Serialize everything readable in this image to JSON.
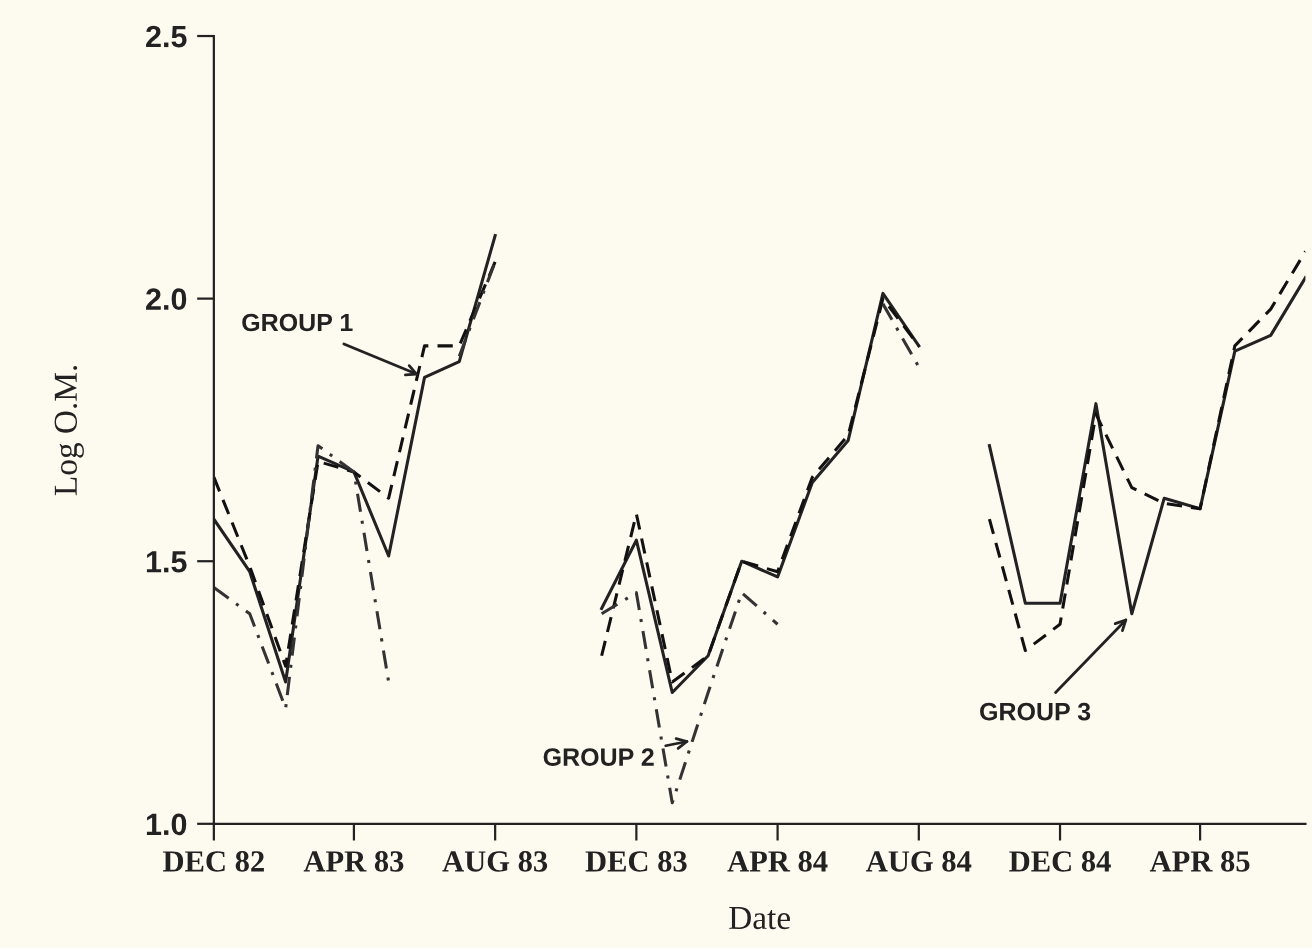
{
  "chart_data": {
    "type": "line",
    "xlabel": "Date",
    "ylabel": "Log O.M.",
    "x": [
      "1982-12",
      "1983-01",
      "1983-02",
      "1983-03",
      "1983-04",
      "1983-05",
      "1983-06",
      "1983-07",
      "1983-08",
      "1983-09",
      "1983-10",
      "1983-11",
      "1983-12",
      "1984-01",
      "1984-02",
      "1984-03",
      "1984-04",
      "1984-05",
      "1984-06",
      "1984-07",
      "1984-08",
      "1984-09",
      "1984-10",
      "1984-11",
      "1984-12",
      "1985-01",
      "1985-02",
      "1985-03",
      "1985-04",
      "1985-05",
      "1985-06",
      "1985-07"
    ],
    "series": [
      {
        "color": "#222222",
        "line_style": "solid",
        "values": [
          1.58,
          1.48,
          1.27,
          1.7,
          1.67,
          1.51,
          1.85,
          1.88,
          2.12,
          null,
          null,
          1.41,
          1.54,
          1.25,
          1.32,
          1.5,
          1.47,
          1.65,
          1.73,
          2.01,
          1.91,
          null,
          1.72,
          1.42,
          1.42,
          1.8,
          1.4,
          1.62,
          1.6,
          1.9,
          1.93,
          2.04
        ]
      },
      {
        "color": "#111111",
        "line_style": "dashed",
        "values": [
          1.66,
          1.49,
          1.3,
          1.69,
          1.67,
          1.62,
          1.91,
          1.91,
          2.07,
          null,
          null,
          1.32,
          1.59,
          1.27,
          1.32,
          1.5,
          1.48,
          1.66,
          1.74,
          2.0,
          1.91,
          null,
          1.58,
          1.33,
          1.38,
          1.78,
          1.64,
          1.61,
          1.6,
          1.91,
          1.98,
          2.09
        ]
      },
      {
        "color": "#333333",
        "line_style": "dashdot",
        "values": [
          1.45,
          1.4,
          1.22,
          1.72,
          1.67,
          1.27,
          null,
          1.89,
          2.07,
          null,
          null,
          1.4,
          1.44,
          1.04,
          1.25,
          1.44,
          1.38,
          null,
          null,
          1.99,
          1.87,
          null,
          null,
          null,
          null,
          null,
          null,
          null,
          null,
          null,
          null,
          null
        ]
      }
    ],
    "xlim": [
      "1982-12",
      "1985-07"
    ],
    "xticks": [
      {
        "value": "1982-12",
        "label": "DEC 82"
      },
      {
        "value": "1983-04",
        "label": "APR 83"
      },
      {
        "value": "1983-08",
        "label": "AUG 83"
      },
      {
        "value": "1983-12",
        "label": "DEC 83"
      },
      {
        "value": "1984-04",
        "label": "APR 84"
      },
      {
        "value": "1984-08",
        "label": "AUG 84"
      },
      {
        "value": "1984-12",
        "label": "DEC 84"
      },
      {
        "value": "1985-04",
        "label": "APR 85"
      }
    ],
    "ylim": [
      1.0,
      2.5
    ],
    "yticks": [
      {
        "value": 1.0,
        "label": "1.0"
      },
      {
        "value": 1.5,
        "label": "1.5"
      },
      {
        "value": 2.0,
        "label": "2.0"
      },
      {
        "value": 2.5,
        "label": "2.5"
      }
    ],
    "annotations": [
      {
        "text": "GROUP 1",
        "x": "1983-06",
        "y": 1.85
      },
      {
        "text": "GROUP 2",
        "x": "1984-01-21",
        "y": 1.16
      },
      {
        "text": "GROUP 3",
        "x": "1985-02",
        "y": 1.4
      }
    ],
    "grid": false,
    "legend": false,
    "marker": "none"
  }
}
